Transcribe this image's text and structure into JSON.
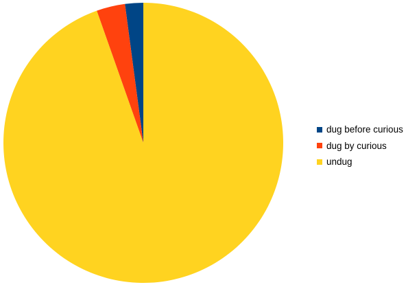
{
  "chart_data": {
    "type": "pie",
    "title": "",
    "start_angle": "12 o'clock, counterclockwise",
    "legend_position": "right",
    "slices": [
      {
        "label": "dug before curious",
        "value": 2.1,
        "color": "#004586"
      },
      {
        "label": "dug by curious",
        "value": 3.3,
        "color": "#ff420e"
      },
      {
        "label": "undug",
        "value": 94.6,
        "color": "#ffd320"
      }
    ]
  }
}
